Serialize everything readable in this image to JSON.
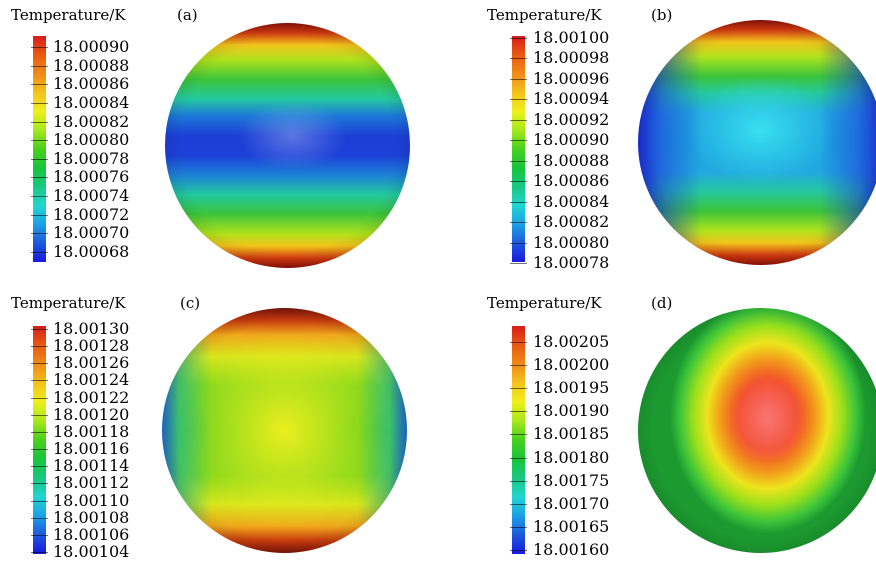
{
  "panels": [
    {
      "id": "a",
      "title": "Temperature/K",
      "letter": "(a)",
      "labels": [
        "18.00090",
        "18.00088",
        "18.00086",
        "18.00084",
        "18.00082",
        "18.00080",
        "18.00078",
        "18.00076",
        "18.00074",
        "18.00072",
        "18.00070",
        "18.00068"
      ]
    },
    {
      "id": "b",
      "title": "Temperature/K",
      "letter": "(b)",
      "labels": [
        "18.00100",
        "18.00098",
        "18.00096",
        "18.00094",
        "18.00092",
        "18.00090",
        "18.00088",
        "18.00086",
        "18.00084",
        "18.00082",
        "18.00080",
        "18.00078"
      ]
    },
    {
      "id": "c",
      "title": "Temperature/K",
      "letter": "(c)",
      "labels": [
        "18.00130",
        "18.00128",
        "18.00126",
        "18.00124",
        "18.00122",
        "18.00120",
        "18.00118",
        "18.00116",
        "18.00114",
        "18.00112",
        "18.00110",
        "18.00108",
        "18.00106",
        "18.00104"
      ]
    },
    {
      "id": "d",
      "title": "Temperature/K",
      "letter": "(d)",
      "labels": [
        "18.00205",
        "18.00200",
        "18.00195",
        "18.00190",
        "18.00185",
        "18.00180",
        "18.00175",
        "18.00170",
        "18.00165",
        "18.00160"
      ]
    }
  ],
  "colormap": [
    "#d81c1c",
    "#e85a10",
    "#f08a18",
    "#f4c21c",
    "#eef01c",
    "#a6e81c",
    "#48d01c",
    "#18c43a",
    "#18c882",
    "#20d6d0",
    "#1ca0e6",
    "#1c58dc",
    "#1818e0"
  ]
}
